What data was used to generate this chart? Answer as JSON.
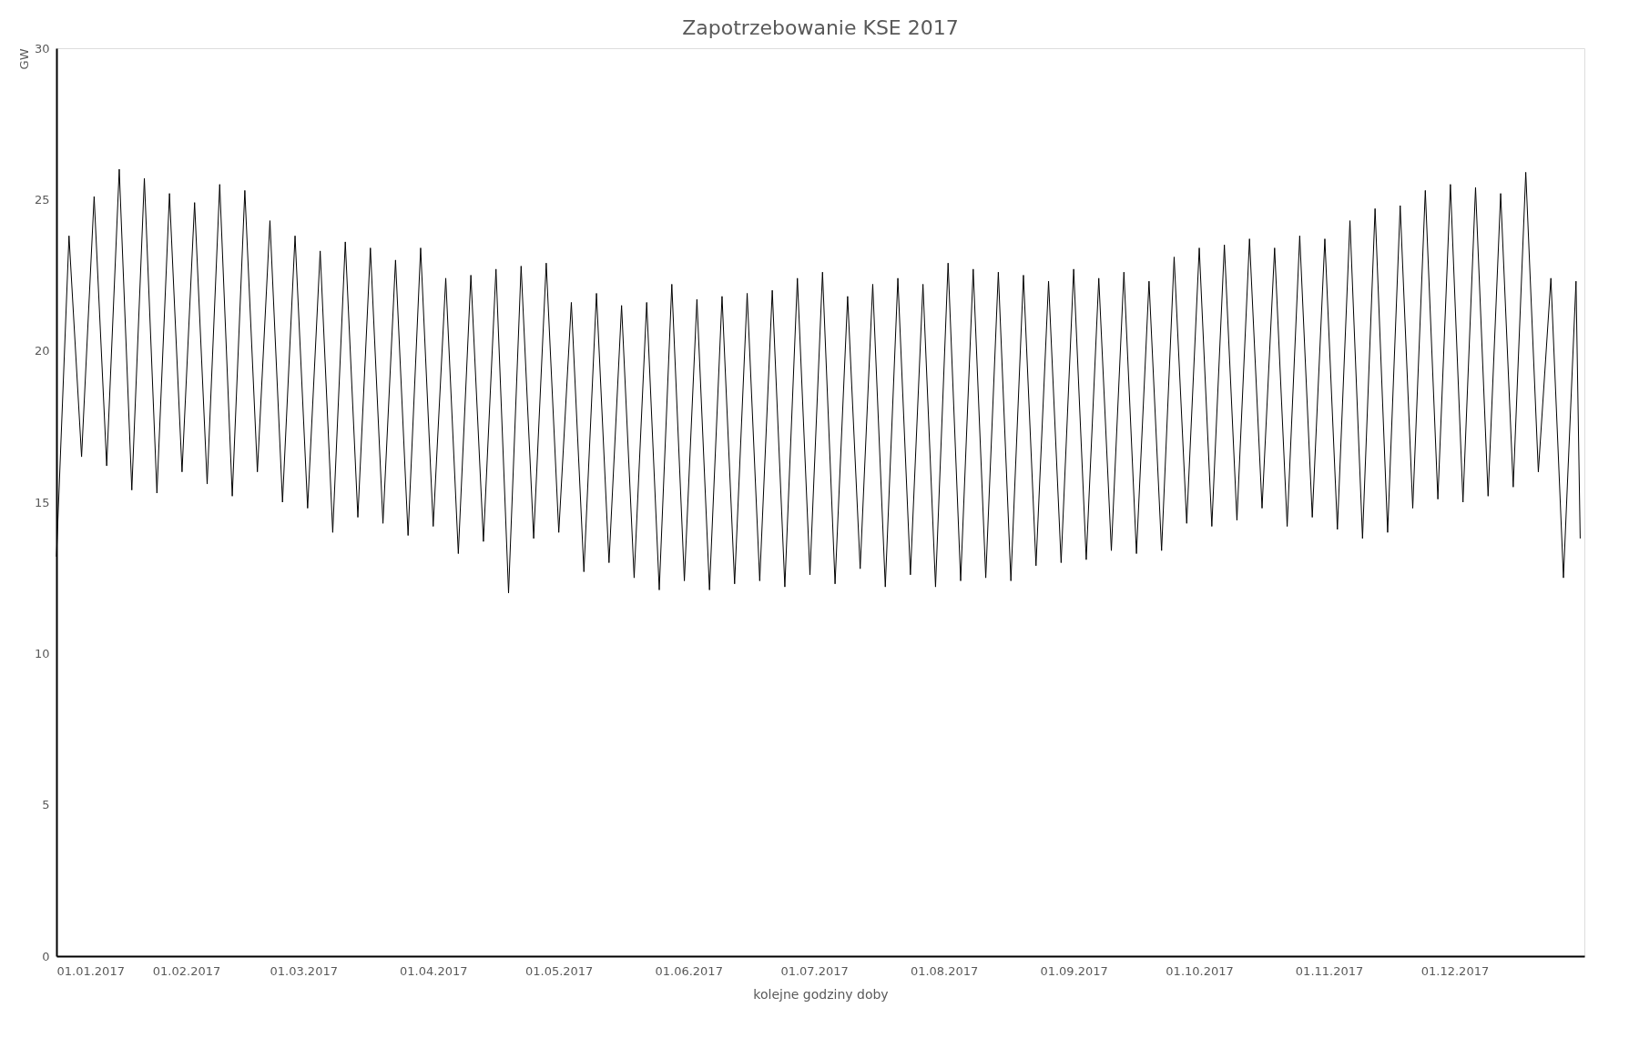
{
  "chart_data": {
    "type": "line",
    "title": "Zapotrzebowanie KSE 2017",
    "xlabel": "kolejne godziny doby",
    "ylabel": "GW",
    "x": [
      "2017-01-01",
      "2017-01-04",
      "2017-01-07",
      "2017-01-10",
      "2017-01-13",
      "2017-01-16",
      "2017-01-19",
      "2017-01-22",
      "2017-01-25",
      "2017-01-28",
      "2017-01-31",
      "2017-02-03",
      "2017-02-06",
      "2017-02-09",
      "2017-02-12",
      "2017-02-15",
      "2017-02-18",
      "2017-02-21",
      "2017-02-24",
      "2017-02-27",
      "2017-03-02",
      "2017-03-05",
      "2017-03-08",
      "2017-03-11",
      "2017-03-14",
      "2017-03-17",
      "2017-03-20",
      "2017-03-23",
      "2017-03-26",
      "2017-03-29",
      "2017-04-01",
      "2017-04-04",
      "2017-04-07",
      "2017-04-10",
      "2017-04-13",
      "2017-04-16",
      "2017-04-19",
      "2017-04-22",
      "2017-04-25",
      "2017-04-28",
      "2017-05-01",
      "2017-05-04",
      "2017-05-07",
      "2017-05-10",
      "2017-05-13",
      "2017-05-16",
      "2017-05-19",
      "2017-05-22",
      "2017-05-25",
      "2017-05-28",
      "2017-05-31",
      "2017-06-03",
      "2017-06-06",
      "2017-06-09",
      "2017-06-12",
      "2017-06-15",
      "2017-06-18",
      "2017-06-21",
      "2017-06-24",
      "2017-06-27",
      "2017-06-30",
      "2017-07-03",
      "2017-07-06",
      "2017-07-09",
      "2017-07-12",
      "2017-07-15",
      "2017-07-18",
      "2017-07-21",
      "2017-07-24",
      "2017-07-27",
      "2017-07-30",
      "2017-08-02",
      "2017-08-05",
      "2017-08-08",
      "2017-08-11",
      "2017-08-14",
      "2017-08-17",
      "2017-08-20",
      "2017-08-23",
      "2017-08-26",
      "2017-08-29",
      "2017-09-01",
      "2017-09-04",
      "2017-09-07",
      "2017-09-10",
      "2017-09-13",
      "2017-09-16",
      "2017-09-19",
      "2017-09-22",
      "2017-09-25",
      "2017-09-28",
      "2017-10-01",
      "2017-10-04",
      "2017-10-07",
      "2017-10-10",
      "2017-10-13",
      "2017-10-16",
      "2017-10-19",
      "2017-10-22",
      "2017-10-25",
      "2017-10-28",
      "2017-10-31",
      "2017-11-03",
      "2017-11-06",
      "2017-11-09",
      "2017-11-12",
      "2017-11-15",
      "2017-11-18",
      "2017-11-21",
      "2017-11-24",
      "2017-11-27",
      "2017-11-30",
      "2017-12-03",
      "2017-12-06",
      "2017-12-09",
      "2017-12-12",
      "2017-12-15",
      "2017-12-18",
      "2017-12-21",
      "2017-12-24",
      "2017-12-27",
      "2017-12-30",
      "2017-12-31"
    ],
    "series": [
      {
        "color": "#000000",
        "values": [
          13.2,
          23.8,
          16.5,
          25.1,
          16.2,
          26.0,
          15.4,
          25.7,
          15.3,
          25.2,
          16.0,
          24.9,
          15.6,
          25.5,
          15.2,
          25.3,
          16.0,
          24.3,
          15.0,
          23.8,
          14.8,
          23.3,
          14.0,
          23.6,
          14.5,
          23.4,
          14.3,
          23.0,
          13.9,
          23.4,
          14.2,
          22.4,
          13.3,
          22.5,
          13.7,
          22.7,
          12.0,
          22.8,
          13.8,
          22.9,
          14.0,
          21.6,
          12.7,
          21.9,
          13.0,
          21.5,
          12.5,
          21.6,
          12.1,
          22.2,
          12.4,
          21.7,
          12.1,
          21.8,
          12.3,
          21.9,
          12.4,
          22.0,
          12.2,
          22.4,
          12.6,
          22.6,
          12.3,
          21.8,
          12.8,
          22.2,
          12.2,
          22.4,
          12.6,
          22.2,
          12.2,
          22.9,
          12.4,
          22.7,
          12.5,
          22.6,
          12.4,
          22.5,
          12.9,
          22.3,
          13.0,
          22.7,
          13.1,
          22.4,
          13.4,
          22.6,
          13.3,
          22.3,
          13.4,
          23.1,
          14.3,
          23.4,
          14.2,
          23.5,
          14.4,
          23.7,
          14.8,
          23.4,
          14.2,
          23.8,
          14.5,
          23.7,
          14.1,
          24.3,
          13.8,
          24.7,
          14.0,
          24.8,
          14.8,
          25.3,
          15.1,
          25.5,
          15.0,
          25.4,
          15.2,
          25.2,
          15.5,
          25.9,
          16.0,
          22.4,
          12.5,
          22.3,
          13.8
        ]
      }
    ],
    "xlim": [
      "2017-01-01",
      "2018-01-01"
    ],
    "xticks": [
      {
        "value": "2017-01-01",
        "label": "01.01.2017"
      },
      {
        "value": "2017-02-01",
        "label": "01.02.2017"
      },
      {
        "value": "2017-03-01",
        "label": "01.03.2017"
      },
      {
        "value": "2017-04-01",
        "label": "01.04.2017"
      },
      {
        "value": "2017-05-01",
        "label": "01.05.2017"
      },
      {
        "value": "2017-06-01",
        "label": "01.06.2017"
      },
      {
        "value": "2017-07-01",
        "label": "01.07.2017"
      },
      {
        "value": "2017-08-01",
        "label": "01.08.2017"
      },
      {
        "value": "2017-09-01",
        "label": "01.09.2017"
      },
      {
        "value": "2017-10-01",
        "label": "01.10.2017"
      },
      {
        "value": "2017-11-01",
        "label": "01.11.2017"
      },
      {
        "value": "2017-12-01",
        "label": "01.12.2017"
      }
    ],
    "ylim": [
      0,
      30
    ],
    "yticks": [
      0,
      5,
      10,
      15,
      20,
      25,
      30
    ],
    "grid": false,
    "marker": "none",
    "line_style": "solid"
  }
}
